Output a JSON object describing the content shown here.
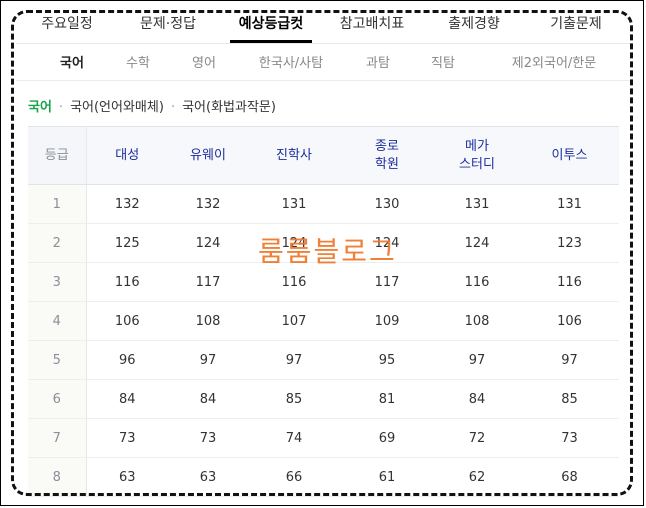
{
  "top_tabs": [
    "주요일정",
    "문제·정답",
    "예상등급컷",
    "참고배치표",
    "출제경향",
    "기출문제"
  ],
  "active_top_tab": "예상등급컷",
  "sub_tabs": [
    "국어",
    "수학",
    "영어",
    "한국사/사탐",
    "과탐",
    "직탐",
    "제2외국어/한문"
  ],
  "active_sub_tab": "국어",
  "breadcrumb": {
    "current": "국어",
    "items": [
      "국어(언어와매체)",
      "국어(화법과작문)"
    ]
  },
  "table": {
    "headers": [
      "등급",
      "대성",
      "유웨이",
      "진학사",
      "종로\n학원",
      "메가\n스터디",
      "이투스"
    ],
    "rows": [
      [
        "1",
        "132",
        "132",
        "131",
        "130",
        "131",
        "131"
      ],
      [
        "2",
        "125",
        "124",
        "124",
        "124",
        "124",
        "123"
      ],
      [
        "3",
        "116",
        "117",
        "116",
        "117",
        "116",
        "116"
      ],
      [
        "4",
        "106",
        "108",
        "107",
        "109",
        "108",
        "106"
      ],
      [
        "5",
        "96",
        "97",
        "97",
        "95",
        "97",
        "97"
      ],
      [
        "6",
        "84",
        "84",
        "85",
        "81",
        "84",
        "85"
      ],
      [
        "7",
        "73",
        "73",
        "74",
        "69",
        "72",
        "73"
      ],
      [
        "8",
        "63",
        "63",
        "66",
        "61",
        "62",
        "68"
      ]
    ]
  },
  "watermark": "룸룸블로그",
  "colors": {
    "accent_green": "#17a34a",
    "header_blue": "#1d2d9c",
    "watermark_orange": "#f07a2e"
  }
}
